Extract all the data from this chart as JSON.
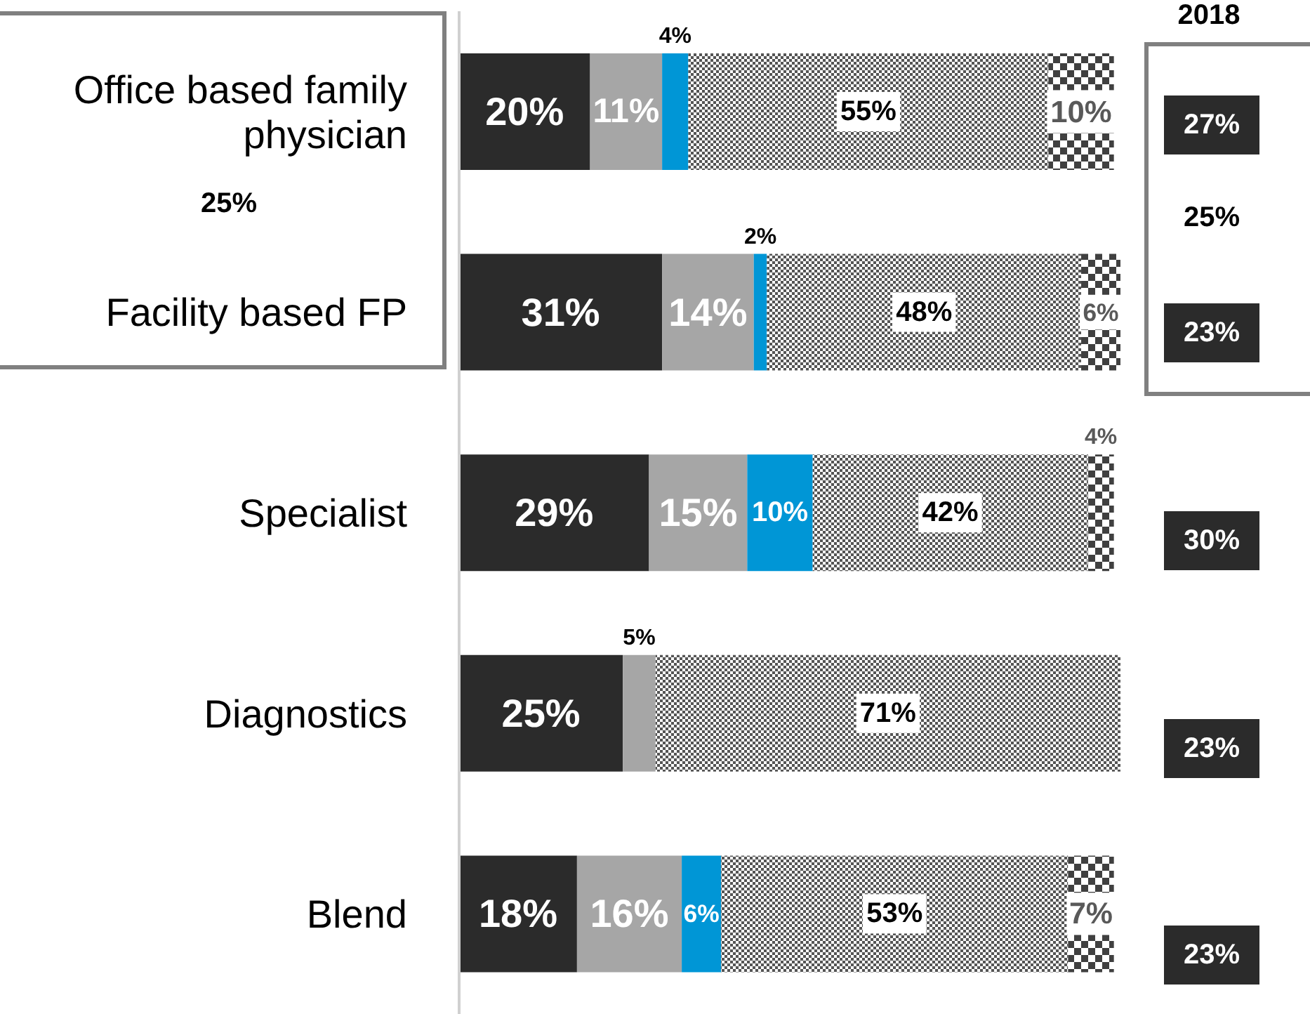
{
  "chart_data": {
    "type": "bar",
    "orientation": "horizontal",
    "stacked": true,
    "categories": [
      "Office based family physician",
      "Facility based FP",
      "Specialist",
      "Diagnostics",
      "Blend"
    ],
    "series": [
      {
        "color": "#2b2b2b",
        "values": [
          20,
          31,
          29,
          25,
          18
        ],
        "value_labels": [
          "20%",
          "31%",
          "29%",
          "25%",
          "18%"
        ]
      },
      {
        "color": "#a6a6a6",
        "values": [
          11,
          14,
          15,
          5,
          16
        ],
        "value_labels": [
          "11%",
          "14%",
          "15%",
          "5%",
          "16%"
        ]
      },
      {
        "color": "#0096d6",
        "values": [
          4,
          2,
          10,
          null,
          6
        ],
        "value_labels": [
          "4%",
          "2%",
          "10%",
          null,
          "6%"
        ]
      },
      {
        "color": "#555555",
        "values": [
          55,
          48,
          42,
          71,
          53
        ],
        "value_labels": [
          "55%",
          "48%",
          "42%",
          "71%",
          "53%"
        ]
      },
      {
        "color": "#404040",
        "values": [
          10,
          6,
          4,
          null,
          7
        ],
        "value_labels": [
          "10%",
          "6%",
          "4%",
          null,
          "7%"
        ]
      }
    ],
    "annotations": [
      "2018",
      "27%",
      "25%",
      "23%",
      "30%",
      "23%",
      "23%",
      "25%"
    ]
  }
}
